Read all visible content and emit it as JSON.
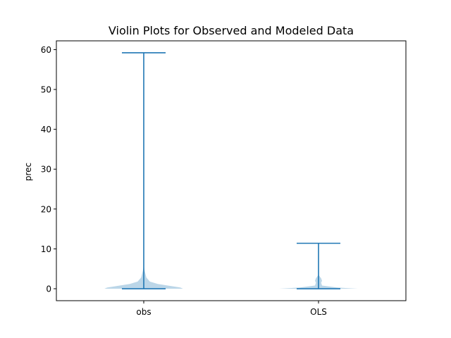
{
  "chart_data": {
    "type": "violin",
    "title": "Violin Plots for Observed and Modeled Data",
    "xlabel": "",
    "ylabel": "prec",
    "categories": [
      "obs",
      "OLS"
    ],
    "ylim": [
      -3,
      62.2
    ],
    "y_ticks": [
      0,
      10,
      20,
      30,
      40,
      50,
      60
    ],
    "grid": false,
    "series": [
      {
        "category": "obs",
        "min": 0,
        "max": 59.2,
        "density": [
          {
            "y": 0.0,
            "w": 0.45
          },
          {
            "y": 0.3,
            "w": 0.42
          },
          {
            "y": 0.7,
            "w": 0.3
          },
          {
            "y": 1.2,
            "w": 0.16
          },
          {
            "y": 1.8,
            "w": 0.07
          },
          {
            "y": 2.8,
            "w": 0.03
          },
          {
            "y": 4.5,
            "w": 0.01
          },
          {
            "y": 6.0,
            "w": 0.0
          }
        ]
      },
      {
        "category": "OLS",
        "min": 0,
        "max": 11.4,
        "density": [
          {
            "y": 0.0,
            "w": 0.45
          },
          {
            "y": 0.3,
            "w": 0.22
          },
          {
            "y": 0.8,
            "w": 0.04
          },
          {
            "y": 1.5,
            "w": 0.03
          },
          {
            "y": 2.0,
            "w": 0.04
          },
          {
            "y": 2.6,
            "w": 0.03
          },
          {
            "y": 3.2,
            "w": 0.01
          },
          {
            "y": 3.6,
            "w": 0.0
          }
        ]
      }
    ],
    "colors": {
      "line": "#1f77b4",
      "body": "#1f77b4"
    }
  }
}
